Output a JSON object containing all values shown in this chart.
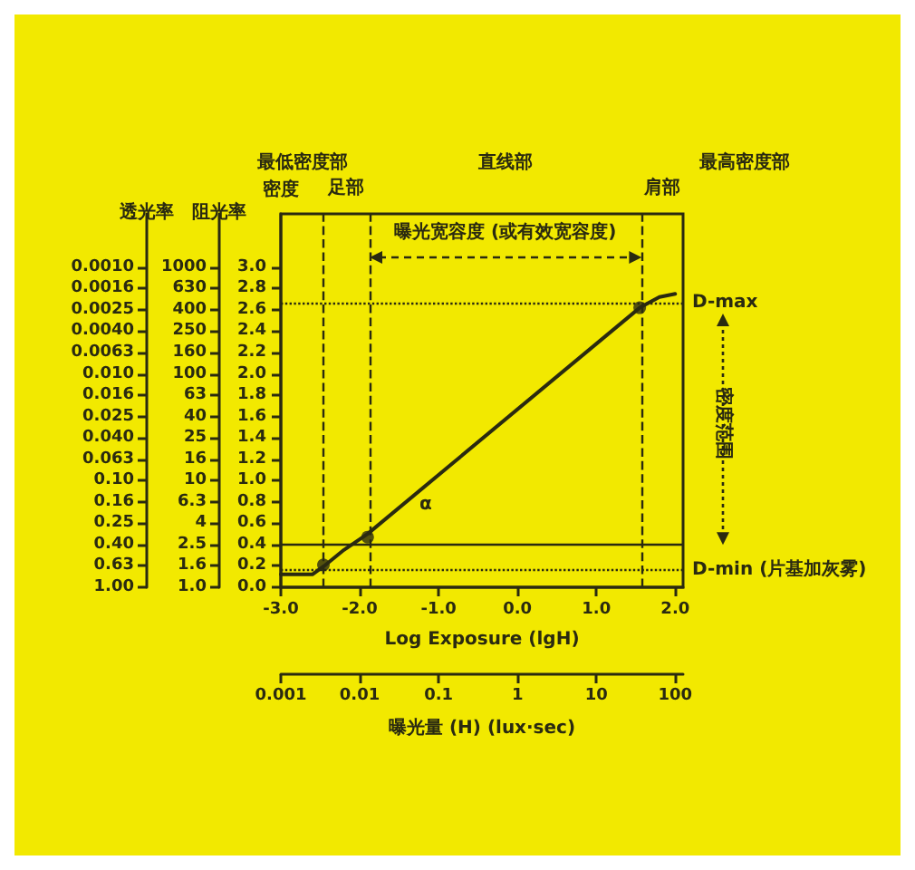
{
  "chart_data": {
    "type": "line",
    "xlabel": "Log Exposure (lgH)",
    "ylabel": "密度",
    "xlim": [
      -3.0,
      2.1
    ],
    "ylim": [
      0,
      3.5
    ],
    "xticks": [
      {
        "value": -3,
        "label": "-3.0"
      },
      {
        "value": -2,
        "label": "-2.0"
      },
      {
        "value": -1,
        "label": "-1.0"
      },
      {
        "value": 0,
        "label": "0.0"
      },
      {
        "value": 1,
        "label": "1.0"
      },
      {
        "value": 2,
        "label": "2.0"
      }
    ],
    "yticks": [
      {
        "value": 0,
        "label": "0.0"
      },
      0.2,
      0.4,
      0.6,
      0.8,
      {
        "value": 1,
        "label": "1.0"
      },
      1.2,
      1.4,
      1.6,
      1.8,
      {
        "value": 2,
        "label": "2.0"
      },
      2.2,
      2.4,
      2.6,
      2.8,
      {
        "value": 3,
        "label": "3.0"
      }
    ],
    "marker": "none",
    "line_style": "solid",
    "series": [
      {
        "color": "#2a2a10",
        "x": [
          -3.0,
          -2.6,
          -2.45,
          -2.2,
          -1.9,
          1.55,
          1.8,
          2.0
        ],
        "values": [
          0.12,
          0.12,
          0.2,
          0.35,
          0.5,
          2.62,
          2.72,
          2.75
        ]
      },
      {
        "type": "scatter",
        "marker": "circle",
        "color": "#2a2a10",
        "x": [
          -2.46,
          -1.9,
          1.55
        ],
        "values": [
          0.21,
          0.47,
          2.62
        ]
      }
    ],
    "ref_lines": [
      {
        "axis": "x",
        "value": -2.46,
        "line_style": "dashed"
      },
      {
        "axis": "x",
        "value": -1.88,
        "line_style": "dashed"
      },
      {
        "axis": "x",
        "value": 1.57,
        "line_style": "dashed"
      },
      {
        "axis": "y",
        "value": 2.67,
        "label": "D-max",
        "line_style": "dotted"
      },
      {
        "axis": "y",
        "value": 0.4,
        "line_style": "solid"
      },
      {
        "axis": "y",
        "value": 0.16,
        "label": "D-min (片基加灰雾)",
        "line_style": "dotted"
      }
    ],
    "annotations": [
      "最低密度部",
      "足部",
      "直线部",
      "肩部",
      "最高密度部",
      "曝光宽容度 (或有效宽容度)",
      "密度范围",
      "α",
      "阻光率",
      "1000",
      "630",
      "400",
      "250",
      "160",
      "100",
      "63",
      "40",
      "25",
      "16",
      "10",
      "6.3",
      "4",
      "2.5",
      "1.6",
      "1.0",
      "透光率",
      "0.0010",
      "0.0016",
      "0.0025",
      "0.0040",
      "0.0063",
      "0.010",
      "0.016",
      "0.025",
      "0.040",
      "0.063",
      "0.10",
      "0.16",
      "0.25",
      "0.40",
      "0.63",
      "1.00",
      "0.001",
      "0.01",
      "0.1",
      "1",
      "10",
      "100",
      "曝光量 (H) (lux·sec)"
    ]
  }
}
